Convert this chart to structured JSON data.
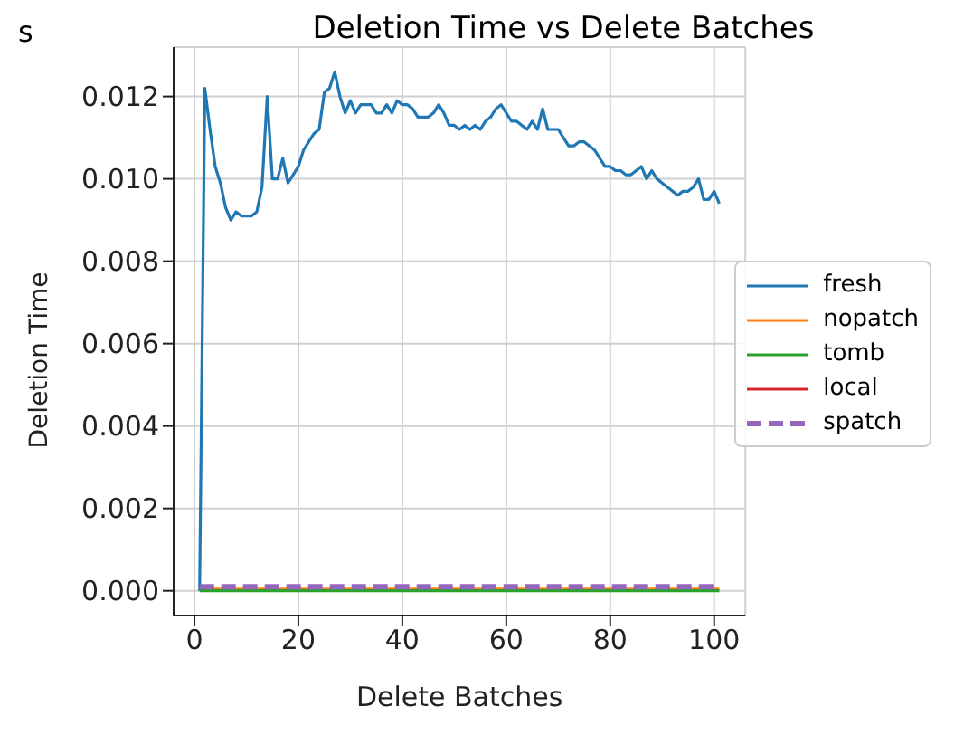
{
  "chart_data": {
    "type": "line",
    "title": "Deletion Time vs Delete Batches",
    "xlabel": "Delete Batches",
    "ylabel": "Deletion Time",
    "annotations": [
      "s"
    ],
    "xlim": [
      -4,
      106
    ],
    "xticks": [
      0,
      20,
      40,
      60,
      80,
      100
    ],
    "ylim": [
      -0.0006,
      0.0132
    ],
    "yticks": [
      {
        "value": 0,
        "label": "0.000"
      },
      {
        "value": 0.002,
        "label": "0.002"
      },
      {
        "value": 0.004,
        "label": "0.004"
      },
      {
        "value": 0.006,
        "label": "0.006"
      },
      {
        "value": 0.008,
        "label": "0.008"
      },
      {
        "value": 0.01,
        "label": "0.010"
      },
      {
        "value": 0.012,
        "label": "0.012"
      }
    ],
    "grid": true,
    "legend": "right",
    "marker": "none",
    "series": [
      {
        "name": "fresh",
        "color": "#1f77b4",
        "line_style": "solid",
        "x": [
          1,
          2,
          3,
          4,
          5,
          6,
          7,
          8,
          9,
          10,
          11,
          12,
          13,
          14,
          15,
          16,
          17,
          18,
          19,
          20,
          21,
          22,
          23,
          24,
          25,
          26,
          27,
          28,
          29,
          30,
          31,
          32,
          33,
          34,
          35,
          36,
          37,
          38,
          39,
          40,
          41,
          42,
          43,
          44,
          45,
          46,
          47,
          48,
          49,
          50,
          51,
          52,
          53,
          54,
          55,
          56,
          57,
          58,
          59,
          60,
          61,
          62,
          63,
          64,
          65,
          66,
          67,
          68,
          69,
          70,
          71,
          72,
          73,
          74,
          75,
          76,
          77,
          78,
          79,
          80,
          81,
          82,
          83,
          84,
          85,
          86,
          87,
          88,
          89,
          90,
          91,
          92,
          93,
          94,
          95,
          96,
          97,
          98,
          99,
          100,
          101
        ],
        "values": [
          0,
          0.0122,
          0.0112,
          0.0103,
          0.0099,
          0.0093,
          0.009,
          0.0092,
          0.0091,
          0.0091,
          0.0091,
          0.0092,
          0.0098,
          0.012,
          0.01,
          0.01,
          0.0105,
          0.0099,
          0.0101,
          0.0103,
          0.0107,
          0.0109,
          0.0111,
          0.0112,
          0.0121,
          0.0122,
          0.0126,
          0.012,
          0.0116,
          0.0119,
          0.0116,
          0.0118,
          0.0118,
          0.0118,
          0.0116,
          0.0116,
          0.0118,
          0.0116,
          0.0119,
          0.0118,
          0.0118,
          0.0117,
          0.0115,
          0.0115,
          0.0115,
          0.0116,
          0.0118,
          0.0116,
          0.0113,
          0.0113,
          0.0112,
          0.0113,
          0.0112,
          0.0113,
          0.0112,
          0.0114,
          0.0115,
          0.0117,
          0.0118,
          0.0116,
          0.0114,
          0.0114,
          0.0113,
          0.0112,
          0.0114,
          0.0112,
          0.0117,
          0.0112,
          0.0112,
          0.0112,
          0.011,
          0.0108,
          0.0108,
          0.0109,
          0.0109,
          0.0108,
          0.0107,
          0.0105,
          0.0103,
          0.0103,
          0.0102,
          0.0102,
          0.0101,
          0.0101,
          0.0102,
          0.0103,
          0.01,
          0.0102,
          0.01,
          0.0099,
          0.0098,
          0.0097,
          0.0096,
          0.0097,
          0.0097,
          0.0098,
          0.01,
          0.0095,
          0.0095,
          0.0097,
          0.0094
        ]
      },
      {
        "name": "nopatch",
        "color": "#ff7f0e",
        "line_style": "solid",
        "x": [
          1,
          101
        ],
        "values": [
          4e-05,
          4e-05
        ]
      },
      {
        "name": "tomb",
        "color": "#2ca02c",
        "line_style": "solid",
        "x": [
          1,
          101
        ],
        "values": [
          0,
          0
        ]
      },
      {
        "name": "local",
        "color": "#d62728",
        "line_style": "solid",
        "values": [
          null,
          null
        ]
      },
      {
        "name": "spatch",
        "color": "#9467bd",
        "line_style": "dashed",
        "x": [
          1,
          101
        ],
        "values": [
          0.0001,
          0.0001
        ]
      }
    ]
  }
}
